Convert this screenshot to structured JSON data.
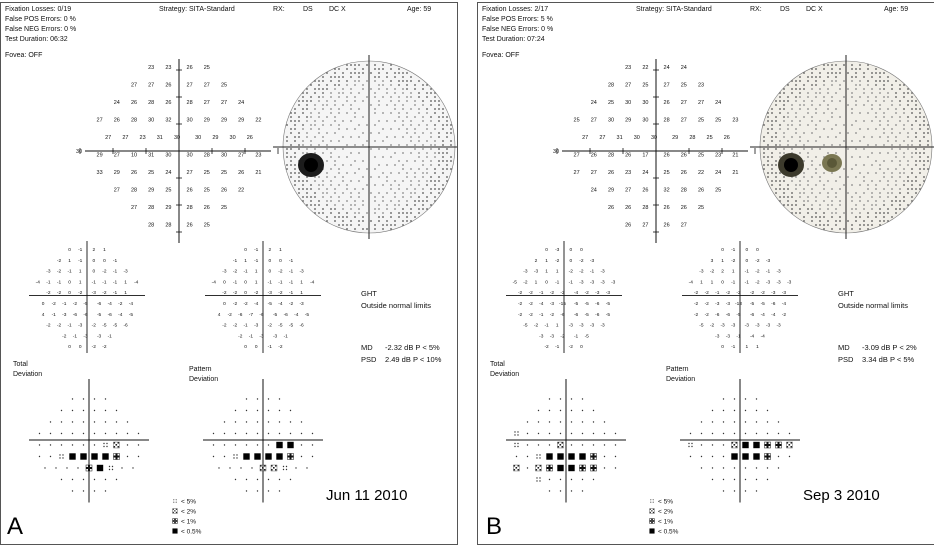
{
  "panels": [
    {
      "letter": "A",
      "date": "Jun 11 2010",
      "fixation": "Fixation Losses: 0/19",
      "false_pos": "False POS Errors:   0 %",
      "false_neg": "False NEG Errors:   0 %",
      "duration": "Test Duration: 06:32",
      "fovea": "Fovea: OFF",
      "strategy": "Strategy: SITA-Standard",
      "rx": "RX:",
      "ds": "DS",
      "dc": "DC  X",
      "age": "Age: 59",
      "ght": "GHT",
      "ght_result": "Outside normal limits",
      "md_label": "MD",
      "md_value": "-2.32 dB  P < 5%",
      "psd_label": "PSD",
      "psd_value": "2.49 dB  P < 10%",
      "total_label": "Total",
      "pattern_label": "Pattern",
      "deviation_label": "Deviation",
      "axis_left": "30",
      "axis_right": "30",
      "sens_rows": [
        [
          "23",
          "23",
          "26",
          "25"
        ],
        [
          "27",
          "27",
          "26",
          "27",
          "27",
          "25"
        ],
        [
          "24",
          "26",
          "28",
          "26",
          "28",
          "27",
          "27",
          "24"
        ],
        [
          "27",
          "26",
          "28",
          "30",
          "32",
          "30",
          "29",
          "29",
          "29",
          "22"
        ],
        [
          "27",
          "27",
          "23",
          "31",
          "30",
          "30",
          "29",
          "30",
          "26"
        ],
        [
          "29",
          "27",
          "10",
          "31",
          "30",
          "30",
          "28",
          "30",
          "27",
          "23"
        ],
        [
          "33",
          "29",
          "26",
          "25",
          "24",
          "27",
          "25",
          "25",
          "26",
          "21"
        ],
        [
          "27",
          "28",
          "29",
          "25",
          "26",
          "25",
          "26",
          "22"
        ],
        [
          "27",
          "28",
          "29",
          "28",
          "26",
          "25"
        ],
        [
          "28",
          "28",
          "26",
          "25"
        ]
      ],
      "td_rows": [
        [
          "0",
          "-1",
          "2",
          "1"
        ],
        [
          "-2",
          "1",
          "-1",
          "0",
          "0",
          "-1"
        ],
        [
          "-3",
          "-2",
          "-1",
          "1",
          "0",
          "-2",
          "-1",
          "-3"
        ],
        [
          "-4",
          "-1",
          "-1",
          "0",
          "1",
          "-1",
          "-1",
          "-1",
          "1",
          "-4"
        ],
        [
          "-2",
          "-2",
          "0",
          "-2",
          "-3",
          "-2",
          "-1",
          "1"
        ],
        [
          "0",
          "-2",
          "-1",
          "-2",
          "-5",
          "-6",
          "-4",
          "-2",
          "-4"
        ],
        [
          "4",
          "-1",
          "-3",
          "-6",
          "-6",
          "-5",
          "-6",
          "-4",
          "-5"
        ],
        [
          "-2",
          "-2",
          "-1",
          "-3",
          "-2",
          "-5",
          "-5",
          "-6"
        ],
        [
          "-2",
          "-1",
          "-3",
          "-3",
          "-1"
        ],
        [
          "0",
          "0",
          "-2",
          "-2"
        ]
      ],
      "pd_rows": [
        [
          "0",
          "-1",
          "2",
          "1"
        ],
        [
          "-1",
          "1",
          "-1",
          "0",
          "0",
          "-1"
        ],
        [
          "-3",
          "-2",
          "-1",
          "1",
          "0",
          "-2",
          "-1",
          "-3"
        ],
        [
          "-4",
          "0",
          "-1",
          "0",
          "1",
          "-1",
          "-1",
          "-1",
          "1",
          "-4"
        ],
        [
          "-2",
          "-2",
          "0",
          "-2",
          "-3",
          "-2",
          "-1",
          "1"
        ],
        [
          "0",
          "-2",
          "-2",
          "-4",
          "-5",
          "-4",
          "-2",
          "-3"
        ],
        [
          "4",
          "-2",
          "-6",
          "-7",
          "-6",
          "-5",
          "-6",
          "-4",
          "-5"
        ],
        [
          "-2",
          "-2",
          "-1",
          "-3",
          "-2",
          "-5",
          "-5",
          "-6"
        ],
        [
          "-2",
          "-1",
          "-3",
          "-3",
          "-1"
        ],
        [
          "0",
          "0",
          "-1",
          "-2"
        ]
      ],
      "td_symbols": [
        [
          ".",
          ".",
          ".",
          "."
        ],
        [
          ".",
          ".",
          ".",
          ".",
          ".",
          "."
        ],
        [
          ".",
          ".",
          ".",
          ".",
          ".",
          ".",
          ".",
          "."
        ],
        [
          ".",
          ".",
          ".",
          ".",
          ".",
          ".",
          ".",
          ".",
          ".",
          "."
        ],
        [
          ".",
          ".",
          ".",
          ".",
          ".",
          ".",
          "s5",
          "s2",
          ".",
          "."
        ],
        [
          ".",
          ".",
          "s5",
          "s05",
          "s05",
          "s05",
          "s05",
          "s1",
          ".",
          "."
        ],
        [
          ".",
          ".",
          ".",
          ".",
          "s1",
          "s05",
          "s5",
          ".",
          "."
        ],
        [
          ".",
          ".",
          ".",
          ".",
          ".",
          "."
        ],
        [
          ".",
          ".",
          ".",
          "."
        ]
      ],
      "pd_symbols": [
        [
          ".",
          ".",
          ".",
          "."
        ],
        [
          ".",
          ".",
          ".",
          ".",
          ".",
          "."
        ],
        [
          ".",
          ".",
          ".",
          ".",
          ".",
          ".",
          ".",
          "."
        ],
        [
          ".",
          ".",
          ".",
          ".",
          ".",
          ".",
          ".",
          ".",
          ".",
          "."
        ],
        [
          ".",
          ".",
          ".",
          ".",
          ".",
          ".",
          "s05",
          "s05",
          ".",
          "."
        ],
        [
          ".",
          ".",
          "s5",
          "s05",
          "s05",
          "s05",
          "s05",
          "s1",
          ".",
          "."
        ],
        [
          ".",
          ".",
          ".",
          ".",
          "s2",
          "s2",
          "s5",
          ".",
          "."
        ],
        [
          ".",
          ".",
          ".",
          ".",
          ".",
          "."
        ],
        [
          ".",
          ".",
          ".",
          "."
        ]
      ]
    },
    {
      "letter": "B",
      "date": "Sep 3 2010",
      "fixation": "Fixation Losses: 2/17",
      "false_pos": "False POS Errors:   5 %",
      "false_neg": "False NEG Errors:   0 %",
      "duration": "Test Duration: 07:24",
      "fovea": "Fovea: OFF",
      "strategy": "Strategy: SITA-Standard",
      "rx": "RX:",
      "ds": "DS",
      "dc": "DC  X",
      "age": "Age: 59",
      "ght": "GHT",
      "ght_result": "Outside normal limits",
      "md_label": "MD",
      "md_value": "-3.09 dB  P < 2%",
      "psd_label": "PSD",
      "psd_value": "3.34 dB  P < 5%",
      "total_label": "Total",
      "pattern_label": "Pattern",
      "deviation_label": "Deviation",
      "axis_left": "30",
      "axis_right": "30",
      "sens_rows": [
        [
          "23",
          "22",
          "24",
          "24"
        ],
        [
          "28",
          "27",
          "25",
          "27",
          "25",
          "23"
        ],
        [
          "24",
          "25",
          "30",
          "30",
          "26",
          "27",
          "27",
          "24"
        ],
        [
          "25",
          "27",
          "30",
          "29",
          "30",
          "28",
          "27",
          "25",
          "25",
          "23"
        ],
        [
          "27",
          "27",
          "31",
          "30",
          "30",
          "29",
          "28",
          "25",
          "26"
        ],
        [
          "27",
          "26",
          "28",
          "26",
          "17",
          "26",
          "26",
          "25",
          "23",
          "21"
        ],
        [
          "27",
          "27",
          "26",
          "23",
          "24",
          "25",
          "26",
          "22",
          "24",
          "21"
        ],
        [
          "24",
          "29",
          "27",
          "26",
          "32",
          "28",
          "26",
          "25"
        ],
        [
          "26",
          "26",
          "28",
          "26",
          "26",
          "25"
        ],
        [
          "26",
          "27",
          "26",
          "27"
        ]
      ],
      "td_rows": [
        [
          "0",
          "-3",
          "0",
          "0"
        ],
        [
          "2",
          "1",
          "-2",
          "0",
          "-2",
          "-3"
        ],
        [
          "-3",
          "-3",
          "1",
          "1",
          "-2",
          "-2",
          "-1",
          "-3"
        ],
        [
          "-5",
          "-2",
          "1",
          "0",
          "-1",
          "-1",
          "-3",
          "-3",
          "-3",
          "-3"
        ],
        [
          "-2",
          "-2",
          "-1",
          "-2",
          "-2",
          "-4",
          "-2",
          "-3",
          "-3"
        ],
        [
          "-2",
          "-2",
          "-4",
          "-3",
          "-15",
          "-5",
          "-5",
          "-6",
          "-5"
        ],
        [
          "-2",
          "-2",
          "-1",
          "-2",
          "-6",
          "-6",
          "-5",
          "-6",
          "-5"
        ],
        [
          "-5",
          "-2",
          "-1",
          "1",
          "-3",
          "-3",
          "-3",
          "-3"
        ],
        [
          "-3",
          "-3",
          "-2",
          "-1",
          "-5"
        ],
        [
          "-2",
          "-1",
          "-2",
          "0"
        ]
      ],
      "pd_rows": [
        [
          "0",
          "-1",
          "0",
          "0"
        ],
        [
          "3",
          "1",
          "-2",
          "0",
          "-2",
          "-3"
        ],
        [
          "-3",
          "-2",
          "2",
          "1",
          "-1",
          "-2",
          "-1",
          "-3"
        ],
        [
          "-4",
          "1",
          "1",
          "0",
          "-1",
          "-1",
          "-2",
          "-3",
          "-3",
          "-3"
        ],
        [
          "-2",
          "-2",
          "-1",
          "-2",
          "-2",
          "-2",
          "-2",
          "-3",
          "-3"
        ],
        [
          "-2",
          "-2",
          "-3",
          "-3",
          "-13",
          "-5",
          "-5",
          "-6",
          "-4"
        ],
        [
          "-2",
          "-2",
          "-6",
          "-6",
          "-5",
          "-6",
          "-4",
          "-4",
          "-2"
        ],
        [
          "-5",
          "-2",
          "-3",
          "-3",
          "-3",
          "-3",
          "-3",
          "-3"
        ],
        [
          "-3",
          "-3",
          "-1",
          "-4",
          "-4"
        ],
        [
          "0",
          "-1",
          "1",
          "1"
        ]
      ],
      "td_symbols": [
        [
          ".",
          ".",
          ".",
          "."
        ],
        [
          ".",
          ".",
          ".",
          ".",
          ".",
          "."
        ],
        [
          ".",
          ".",
          ".",
          ".",
          ".",
          ".",
          ".",
          "."
        ],
        [
          "s5",
          ".",
          ".",
          ".",
          ".",
          ".",
          ".",
          ".",
          ".",
          "."
        ],
        [
          "s5",
          ".",
          ".",
          ".",
          "s2",
          ".",
          ".",
          ".",
          ".",
          "."
        ],
        [
          ".",
          ".",
          "s5",
          "s05",
          "s05",
          "s05",
          "s05",
          "s1",
          ".",
          "."
        ],
        [
          "s2",
          ".",
          "s2",
          "s1",
          "s05",
          "s05",
          "s1",
          "s1",
          ".",
          "."
        ],
        [
          "s5",
          ".",
          ".",
          ".",
          ".",
          "."
        ],
        [
          ".",
          ".",
          ".",
          "."
        ]
      ],
      "pd_symbols": [
        [
          ".",
          ".",
          ".",
          "."
        ],
        [
          ".",
          ".",
          ".",
          ".",
          ".",
          "."
        ],
        [
          ".",
          ".",
          ".",
          ".",
          ".",
          ".",
          ".",
          "."
        ],
        [
          ".",
          ".",
          ".",
          ".",
          ".",
          ".",
          ".",
          ".",
          ".",
          "."
        ],
        [
          "s5",
          ".",
          ".",
          ".",
          "s2",
          "s05",
          "s05",
          "s1",
          "s1",
          "s2"
        ],
        [
          ".",
          ".",
          ".",
          ".",
          "s05",
          "s05",
          "s05",
          "s1",
          ".",
          "."
        ],
        [
          ".",
          ".",
          ".",
          ".",
          ".",
          ".",
          ".",
          "."
        ],
        [
          ".",
          ".",
          ".",
          ".",
          ".",
          "."
        ],
        [
          ".",
          ".",
          ".",
          "."
        ]
      ]
    }
  ],
  "legend": {
    "items": [
      {
        "symbol": "s5",
        "label": "< 5%"
      },
      {
        "symbol": "s2",
        "label": "< 2%"
      },
      {
        "symbol": "s1",
        "label": "< 1%"
      },
      {
        "symbol": "s05",
        "label": "< 0.5%"
      }
    ]
  }
}
